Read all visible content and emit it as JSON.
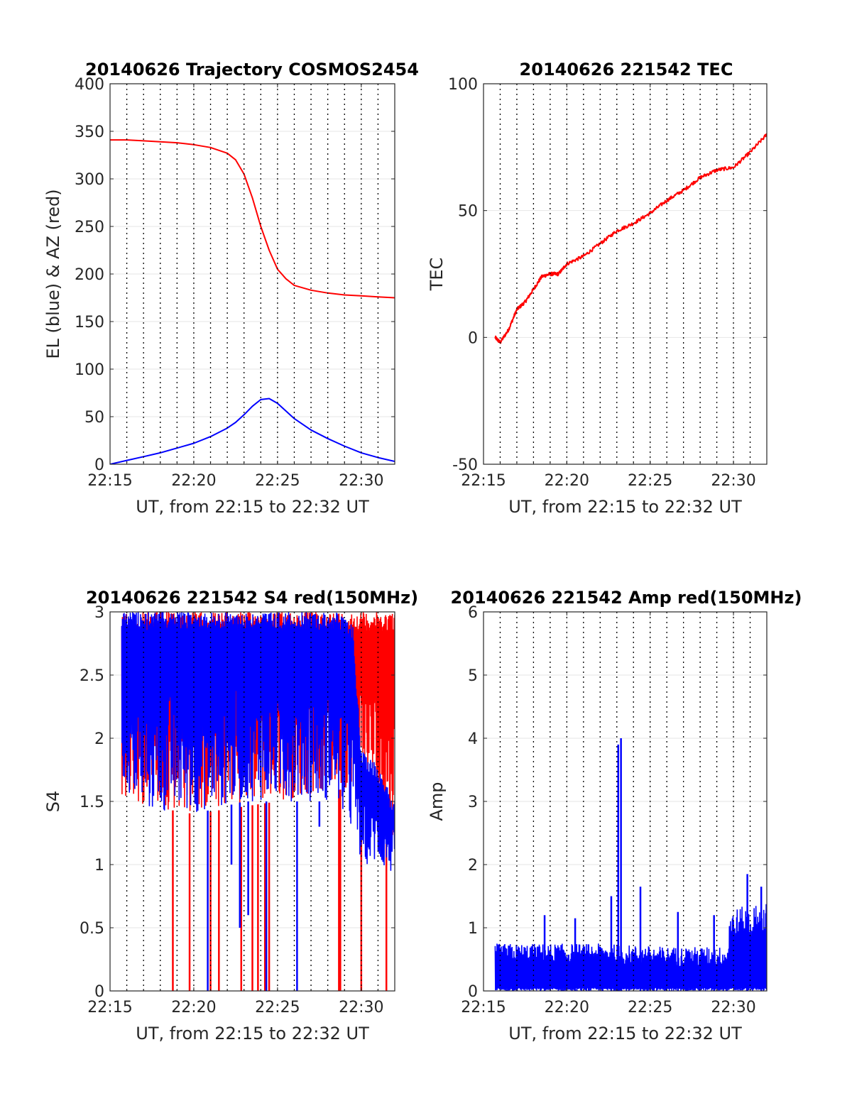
{
  "figure": {
    "colors": {
      "red": "#ff0000",
      "blue": "#0000ff",
      "axis": "#262626",
      "grid_solid": "#e6e6e6",
      "grid_dotted": "#000000"
    },
    "dotted_verticals": [
      "22:16",
      "22:17",
      "22:18",
      "22:19",
      "22:20",
      "22:21",
      "22:22",
      "22:23",
      "22:24",
      "22:25",
      "22:26",
      "22:27",
      "22:28",
      "22:29",
      "22:30",
      "22:31"
    ]
  },
  "chart_data": [
    {
      "id": "trajectory",
      "type": "line",
      "title": "20140626 Trajectory COSMOS2454",
      "xlabel": "UT, from 22:15 to 22:32 UT",
      "ylabel": "EL (blue) & AZ (red)",
      "xlim": [
        "22:15",
        "22:32"
      ],
      "ylim": [
        0,
        400
      ],
      "xticks": [
        "22:15",
        "22:20",
        "22:25",
        "22:30"
      ],
      "yticks": [
        0,
        50,
        100,
        150,
        200,
        250,
        300,
        350,
        400
      ],
      "grid": "on",
      "series": [
        {
          "color": "#ff0000",
          "x": [
            "22:15",
            "22:16",
            "22:17",
            "22:18",
            "22:19",
            "22:20",
            "22:21",
            "22:22",
            "22:22:30",
            "22:23",
            "22:23:30",
            "22:24",
            "22:24:30",
            "22:25",
            "22:25:30",
            "22:26",
            "22:27",
            "22:28",
            "22:29",
            "22:30",
            "22:31",
            "22:32"
          ],
          "values": [
            341,
            341,
            340,
            339,
            338,
            336,
            333,
            327,
            320,
            305,
            280,
            250,
            225,
            205,
            195,
            188,
            183,
            180,
            178,
            177,
            176,
            175
          ]
        },
        {
          "color": "#0000ff",
          "x": [
            "22:15",
            "22:16",
            "22:17",
            "22:18",
            "22:19",
            "22:20",
            "22:21",
            "22:22",
            "22:22:30",
            "22:23",
            "22:23:30",
            "22:24",
            "22:24:30",
            "22:25",
            "22:25:30",
            "22:26",
            "22:27",
            "22:28",
            "22:29",
            "22:30",
            "22:31",
            "22:32"
          ],
          "values": [
            0,
            4,
            8,
            12,
            17,
            22,
            29,
            38,
            44,
            52,
            61,
            68,
            69,
            64,
            56,
            48,
            36,
            27,
            19,
            12,
            7,
            3
          ]
        }
      ]
    },
    {
      "id": "tec",
      "type": "line",
      "title": "20140626 221542 TEC",
      "xlabel": "UT, from 22:15 to 22:32 UT",
      "ylabel": "TEC",
      "xlim": [
        "22:15",
        "22:32"
      ],
      "ylim": [
        -50,
        100
      ],
      "xticks": [
        "22:15",
        "22:20",
        "22:25",
        "22:30"
      ],
      "yticks": [
        -50,
        0,
        50,
        100
      ],
      "grid": "on",
      "series": [
        {
          "color": "#ff0000",
          "x": [
            "22:15:42",
            "22:16",
            "22:16:30",
            "22:17",
            "22:17:30",
            "22:18",
            "22:18:30",
            "22:19",
            "22:19:30",
            "22:20",
            "22:21",
            "22:22",
            "22:23",
            "22:24",
            "22:25",
            "22:26",
            "22:27",
            "22:28",
            "22:29",
            "22:30",
            "22:31",
            "22:32"
          ],
          "values": [
            0,
            -2,
            3,
            11,
            14,
            19,
            24,
            25,
            25,
            29,
            32,
            37,
            42,
            45,
            49,
            54,
            58,
            63,
            66,
            67,
            73,
            80
          ]
        }
      ]
    },
    {
      "id": "s4",
      "type": "line",
      "title": "20140626 221542 S4 red(150MHz)",
      "xlabel": "UT, from 22:15 to 22:32 UT",
      "ylabel": "S4",
      "xlim": [
        "22:15",
        "22:32"
      ],
      "ylim": [
        0,
        3
      ],
      "xticks": [
        "22:15",
        "22:20",
        "22:25",
        "22:30"
      ],
      "yticks": [
        0,
        0.5,
        1,
        1.5,
        2,
        2.5,
        3
      ],
      "grid": "on",
      "series": [
        {
          "color": "#ff0000",
          "x": [
            "22:15:42",
            "22:32"
          ],
          "envelope": [
            {
              "x": "22:15:42",
              "low": 1.5,
              "high": 3.0
            },
            {
              "x": "22:20",
              "low": 1.4,
              "high": 3.0
            },
            {
              "x": "22:25",
              "low": 1.5,
              "high": 3.0
            },
            {
              "x": "22:29",
              "low": 1.6,
              "high": 3.0
            },
            {
              "x": "22:30",
              "low": 1.7,
              "high": 3.0
            },
            {
              "x": "22:32",
              "low": 1.2,
              "high": 3.0
            }
          ],
          "drops_to_zero": [
            "22:18:45",
            "22:19:45",
            "22:21:00",
            "22:21:30",
            "22:22:50",
            "22:23:30",
            "22:23:50",
            "22:24:15",
            "22:24:30",
            "22:28:40",
            "22:28:45",
            "22:30:00",
            "22:31:30"
          ]
        },
        {
          "color": "#0000ff",
          "envelope": [
            {
              "x": "22:15:42",
              "low": 1.6,
              "high": 3.0
            },
            {
              "x": "22:17",
              "low": 1.4,
              "high": 3.0
            },
            {
              "x": "22:20",
              "low": 1.4,
              "high": 3.0
            },
            {
              "x": "22:23",
              "low": 1.5,
              "high": 3.0
            },
            {
              "x": "22:26",
              "low": 1.5,
              "high": 3.0
            },
            {
              "x": "22:28:30",
              "low": 1.5,
              "high": 3.0
            },
            {
              "x": "22:29:30",
              "low": 1.2,
              "high": 2.9
            },
            {
              "x": "22:30",
              "low": 1.0,
              "high": 1.9
            },
            {
              "x": "22:31",
              "low": 1.0,
              "high": 1.8
            },
            {
              "x": "22:32",
              "low": 0.9,
              "high": 1.5
            }
          ],
          "drops": [
            {
              "x": "22:20:50",
              "low": 0.0
            },
            {
              "x": "22:22:15",
              "low": 1.0
            },
            {
              "x": "22:22:45",
              "low": 0.5
            },
            {
              "x": "22:23:15",
              "low": 0.6
            },
            {
              "x": "22:24:20",
              "low": 0.0
            },
            {
              "x": "22:26:10",
              "low": 0.0
            },
            {
              "x": "22:27:30",
              "low": 1.3
            }
          ]
        }
      ]
    },
    {
      "id": "amp",
      "type": "line",
      "title": "20140626 221542 Amp red(150MHz)",
      "xlabel": "UT, from 22:15 to 22:32 UT",
      "ylabel": "Amp",
      "xlim": [
        "22:15",
        "22:32"
      ],
      "ylim": [
        0,
        6
      ],
      "xticks": [
        "22:15",
        "22:20",
        "22:25",
        "22:30"
      ],
      "yticks": [
        0,
        1,
        2,
        3,
        4,
        5,
        6
      ],
      "grid": "on",
      "series": [
        {
          "color": "#0000ff",
          "envelope": [
            {
              "x": "22:15:42",
              "high": 0.75
            },
            {
              "x": "22:18",
              "high": 0.75
            },
            {
              "x": "22:22",
              "high": 0.75
            },
            {
              "x": "22:26",
              "high": 0.7
            },
            {
              "x": "22:29:40",
              "high": 0.7
            },
            {
              "x": "22:29:45",
              "high": 1.3
            },
            {
              "x": "22:32",
              "high": 1.4
            }
          ],
          "spikes": [
            {
              "x": "22:18:40",
              "value": 1.2
            },
            {
              "x": "22:20:30",
              "value": 1.15
            },
            {
              "x": "22:22:40",
              "value": 1.5
            },
            {
              "x": "22:23:05",
              "value": 3.9
            },
            {
              "x": "22:23:15",
              "value": 4.0
            },
            {
              "x": "22:24:25",
              "value": 1.65
            },
            {
              "x": "22:26:40",
              "value": 1.25
            },
            {
              "x": "22:28:50",
              "value": 1.2
            },
            {
              "x": "22:30:50",
              "value": 1.85
            },
            {
              "x": "22:31:40",
              "value": 1.65
            }
          ]
        }
      ]
    }
  ]
}
